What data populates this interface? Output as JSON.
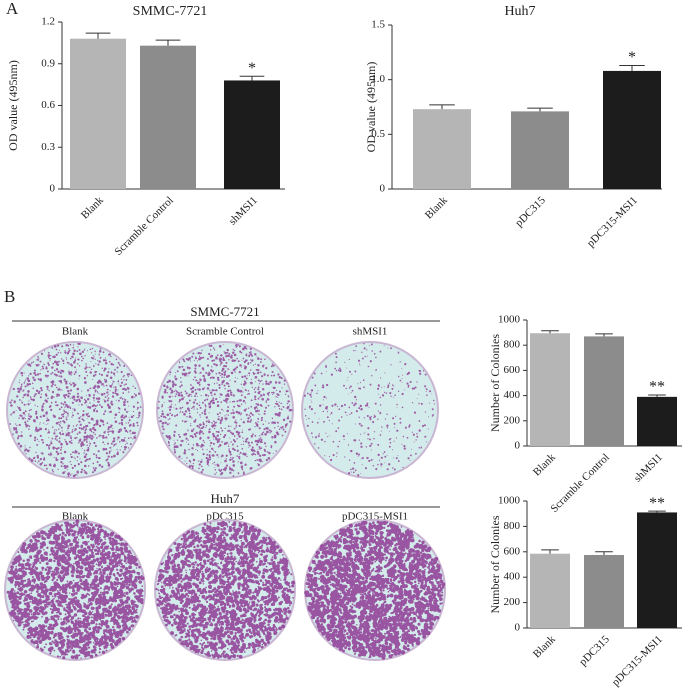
{
  "chart_data": [
    {
      "type": "bar",
      "title": "SMMC-7721",
      "y_label": "OD value (495nm)",
      "categories": [
        "Blank",
        "Scramble  Control",
        "shMSI1"
      ],
      "values": [
        1.08,
        1.03,
        0.78
      ],
      "errors": [
        0.04,
        0.04,
        0.03
      ],
      "colors": [
        "#b5b5b5",
        "#8c8c8c",
        "#1c1c1c"
      ],
      "ylim": [
        0,
        1.2
      ],
      "yticks": [
        0,
        0.3,
        0.6,
        0.9,
        1.2
      ],
      "annotations": [
        {
          "index": 2,
          "text": "*"
        }
      ]
    },
    {
      "type": "bar",
      "title": "Huh7",
      "y_label": "OD value (495nm)",
      "categories": [
        "Blank",
        "pDC315",
        "pDC315-MSI1"
      ],
      "values": [
        0.73,
        0.71,
        1.08
      ],
      "errors": [
        0.04,
        0.03,
        0.05
      ],
      "colors": [
        "#b5b5b5",
        "#8c8c8c",
        "#1c1c1c"
      ],
      "ylim": [
        0,
        1.5
      ],
      "yticks": [
        0,
        0.5,
        {
          "value": 1,
          "label": "1.0"
        },
        1.5
      ],
      "annotations": [
        {
          "index": 2,
          "text": "*"
        }
      ]
    },
    {
      "type": "bar",
      "y_label": "Number of Colonies",
      "categories": [
        "Blank",
        "Scramble Control",
        "shMSI1"
      ],
      "values": [
        895,
        870,
        390
      ],
      "errors": [
        20,
        20,
        15
      ],
      "colors": [
        "#b5b5b5",
        "#8c8c8c",
        "#1c1c1c"
      ],
      "ylim": [
        0,
        1000
      ],
      "yticks": [
        0,
        200,
        400,
        600,
        800,
        1000
      ],
      "annotations": [
        {
          "index": 2,
          "text": "**"
        }
      ]
    },
    {
      "type": "bar",
      "y_label": "Number of Colonies",
      "categories": [
        "Blank",
        "pDC315",
        "pDC315-MSI1"
      ],
      "values": [
        585,
        575,
        910
      ],
      "errors": [
        30,
        25,
        10
      ],
      "colors": [
        "#b5b5b5",
        "#8c8c8c",
        "#1c1c1c"
      ],
      "ylim": [
        0,
        1000
      ],
      "yticks": [
        0,
        200,
        400,
        600,
        800,
        1000
      ],
      "annotations": [
        {
          "index": 2,
          "text": "**"
        }
      ]
    }
  ],
  "figure": {
    "panel_labels": [
      "A",
      "B"
    ],
    "colony_groups": [
      {
        "title": "SMMC-7721",
        "labels": [
          "Blank",
          "Scramble  Control",
          "shMSI1"
        ]
      },
      {
        "title": "Huh7",
        "labels": [
          "Blank",
          "pDC315",
          "pDC315-MSI1"
        ]
      }
    ]
  }
}
